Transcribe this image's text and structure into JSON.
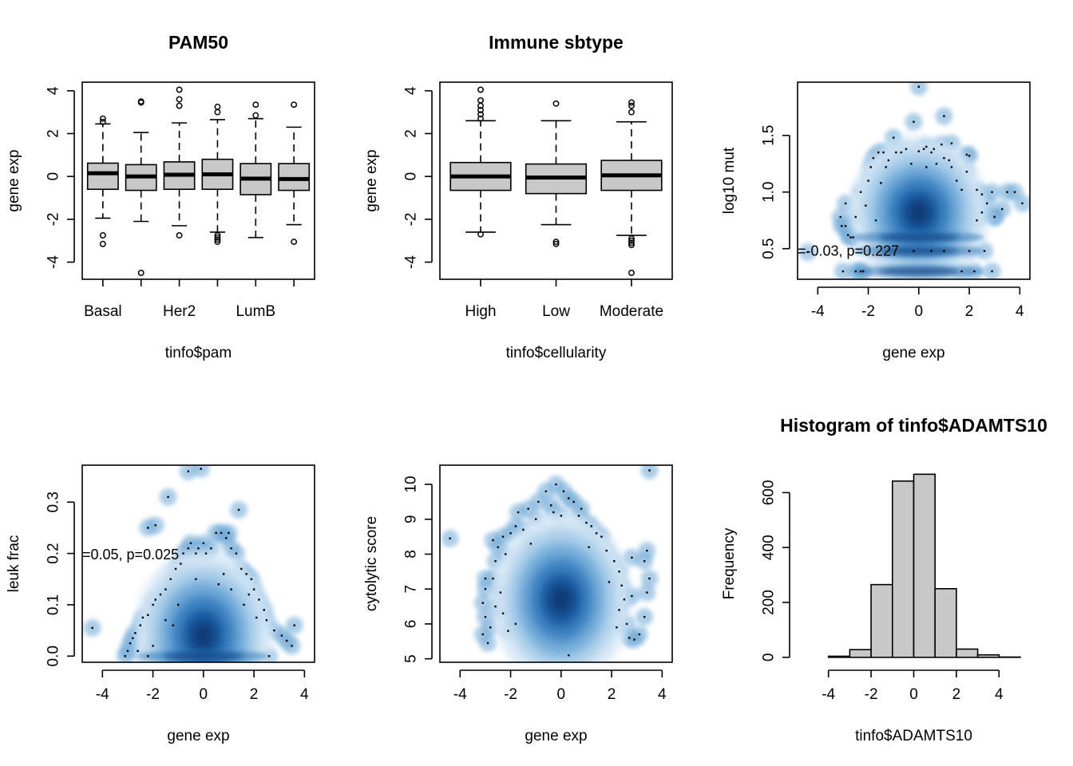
{
  "chart_data": [
    {
      "panel": "top-left",
      "type": "boxplot",
      "title": "PAM50",
      "xlabel": "tinfo$pam",
      "ylabel": "gene exp",
      "ylim": [
        -4.8,
        4.4
      ],
      "yticks": [
        -4,
        -2,
        0,
        2,
        4
      ],
      "yticklabels": [
        "-4",
        "-2",
        "0",
        "2",
        "4"
      ],
      "categories": [
        "Basal",
        "Her2",
        "LumB"
      ],
      "n_boxes": 6,
      "label_box_index": [
        0,
        2,
        4
      ],
      "boxes": [
        {
          "q1": -0.6,
          "median": 0.15,
          "q3": 0.62,
          "wlo": -1.95,
          "whi": 2.45,
          "outliers": [
            2.55,
            2.7,
            -2.75,
            -3.15
          ]
        },
        {
          "q1": -0.65,
          "median": 0.0,
          "q3": 0.55,
          "wlo": -2.1,
          "whi": 2.05,
          "outliers": [
            3.45,
            3.5,
            -4.5
          ]
        },
        {
          "q1": -0.6,
          "median": 0.08,
          "q3": 0.68,
          "wlo": -2.3,
          "whi": 2.5,
          "outliers": [
            3.3,
            3.6,
            4.05,
            -2.75
          ]
        },
        {
          "q1": -0.6,
          "median": 0.1,
          "q3": 0.8,
          "wlo": -2.6,
          "whi": 2.65,
          "outliers": [
            3.0,
            3.25,
            -2.75,
            -2.85,
            -2.95,
            -3.05
          ]
        },
        {
          "q1": -0.85,
          "median": -0.1,
          "q3": 0.6,
          "wlo": -2.85,
          "whi": 2.7,
          "outliers": [
            2.85,
            3.35
          ]
        },
        {
          "q1": -0.65,
          "median": -0.12,
          "q3": 0.6,
          "wlo": -2.25,
          "whi": 2.3,
          "outliers": [
            3.35,
            -3.05
          ]
        }
      ]
    },
    {
      "panel": "top-middle",
      "type": "boxplot",
      "title": "Immune sbtype",
      "xlabel": "tinfo$cellularity",
      "ylabel": "gene exp",
      "ylim": [
        -4.8,
        4.4
      ],
      "yticks": [
        -4,
        -2,
        0,
        2,
        4
      ],
      "yticklabels": [
        "-4",
        "-2",
        "0",
        "2",
        "4"
      ],
      "categories": [
        "High",
        "Low",
        "Moderate"
      ],
      "n_boxes": 3,
      "label_box_index": [
        0,
        1,
        2
      ],
      "boxes": [
        {
          "q1": -0.65,
          "median": 0.0,
          "q3": 0.65,
          "wlo": -2.6,
          "whi": 2.6,
          "outliers": [
            2.7,
            2.9,
            3.1,
            3.3,
            3.55,
            4.05,
            -2.7
          ]
        },
        {
          "q1": -0.8,
          "median": -0.05,
          "q3": 0.58,
          "wlo": -2.25,
          "whi": 2.6,
          "outliers": [
            3.4,
            -3.05,
            -3.15
          ]
        },
        {
          "q1": -0.65,
          "median": 0.05,
          "q3": 0.75,
          "wlo": -2.75,
          "whi": 2.55,
          "outliers": [
            3.0,
            3.3,
            3.45,
            -2.9,
            -3.0,
            -3.1,
            -3.2,
            -4.5
          ]
        }
      ]
    },
    {
      "panel": "top-right",
      "type": "scatter",
      "style": "smoothScatter",
      "xlabel": "gene exp",
      "ylabel": "log10 mut",
      "xlim": [
        -4.8,
        4.4
      ],
      "ylim": [
        0.23,
        1.97
      ],
      "xticks": [
        -4,
        -2,
        0,
        2,
        4
      ],
      "xticklabels": [
        "-4",
        "-2",
        "0",
        "2",
        "4"
      ],
      "yticks": [
        0.5,
        1.0,
        1.5
      ],
      "yticklabels": [
        "0.5",
        "1.0",
        "1.5"
      ],
      "annotation": {
        "text": "=-0.03, p=0.227",
        "x": -4.8,
        "y": 0.48
      },
      "density": {
        "cx": 0.0,
        "cy": 0.82,
        "sx": 1.0,
        "sy": 0.24,
        "spread_x": 1.3,
        "spread_y": 0.32,
        "bands": [
          0.3,
          0.48,
          0.6
        ]
      },
      "points": [
        [
          -4.4,
          0.47
        ],
        [
          -3.1,
          0.78
        ],
        [
          -3.05,
          0.7
        ],
        [
          -2.9,
          0.7
        ],
        [
          -2.8,
          0.62
        ],
        [
          -2.7,
          0.6
        ],
        [
          -2.6,
          0.6
        ],
        [
          -2.5,
          0.78
        ],
        [
          -2.5,
          0.3
        ],
        [
          -2.3,
          0.3
        ],
        [
          -2.2,
          0.3
        ],
        [
          -2.3,
          1.0
        ],
        [
          -2.0,
          1.1
        ],
        [
          -2.1,
          0.88
        ],
        [
          -1.9,
          1.22
        ],
        [
          -1.8,
          1.3
        ],
        [
          -1.7,
          0.75
        ],
        [
          -1.6,
          1.35
        ],
        [
          -1.5,
          1.08
        ],
        [
          -1.4,
          1.35
        ],
        [
          -1.2,
          1.28
        ],
        [
          -1.0,
          1.48
        ],
        [
          -0.9,
          1.35
        ],
        [
          -0.7,
          1.35
        ],
        [
          -0.5,
          1.38
        ],
        [
          -0.3,
          1.25
        ],
        [
          0.0,
          1.36
        ],
        [
          0.2,
          1.38
        ],
        [
          0.3,
          1.4
        ],
        [
          0.5,
          1.35
        ],
        [
          0.6,
          1.38
        ],
        [
          0.9,
          1.42
        ],
        [
          1.0,
          1.3
        ],
        [
          1.2,
          1.28
        ],
        [
          1.5,
          1.1
        ],
        [
          1.7,
          1.02
        ],
        [
          1.9,
          1.18
        ],
        [
          2.0,
          1.32
        ],
        [
          2.3,
          1.02
        ],
        [
          2.5,
          0.98
        ],
        [
          2.7,
          0.9
        ],
        [
          2.5,
          0.82
        ],
        [
          2.3,
          0.75
        ],
        [
          2.9,
          1.0
        ],
        [
          3.0,
          0.78
        ],
        [
          3.3,
          0.85
        ],
        [
          3.5,
          1.0
        ],
        [
          3.8,
          1.0
        ],
        [
          4.1,
          0.9
        ],
        [
          2.6,
          0.48
        ],
        [
          2.9,
          0.3
        ],
        [
          2.2,
          0.3
        ],
        [
          1.7,
          0.3
        ],
        [
          2.0,
          0.48
        ],
        [
          -0.2,
          0.48
        ],
        [
          0.5,
          0.48
        ],
        [
          1.0,
          0.48
        ],
        [
          0.3,
          1.22
        ],
        [
          1.3,
          1.22
        ],
        [
          -1.3,
          1.22
        ],
        [
          0.7,
          1.25
        ],
        [
          1.3,
          1.43
        ],
        [
          0.0,
          1.93
        ],
        [
          1.0,
          1.67
        ],
        [
          -0.2,
          1.62
        ],
        [
          1.9,
          1.33
        ],
        [
          -3.0,
          0.3
        ],
        [
          3.0,
          0.78
        ],
        [
          -2.9,
          0.9
        ]
      ]
    },
    {
      "panel": "bottom-left",
      "type": "scatter",
      "style": "smoothScatter",
      "xlabel": "gene exp",
      "ylabel": "leuk frac",
      "xlim": [
        -4.8,
        4.4
      ],
      "ylim": [
        -0.012,
        0.372
      ],
      "xticks": [
        -4,
        -2,
        0,
        2,
        4
      ],
      "xticklabels": [
        "-4",
        "-2",
        "0",
        "2",
        "4"
      ],
      "yticks": [
        0.0,
        0.1,
        0.2,
        0.3
      ],
      "yticklabels": [
        "0.0",
        "0.1",
        "0.2",
        "0.3"
      ],
      "annotation": {
        "text": "=0.05, p=0.025",
        "x": -4.8,
        "y": 0.198
      },
      "density": {
        "cx": 0.0,
        "cy": 0.04,
        "sx": 1.0,
        "sy": 0.06,
        "spread_x": 1.3,
        "spread_y": 0.08,
        "bands": [
          0.0
        ]
      },
      "points": [
        [
          -4.4,
          0.055
        ],
        [
          -3.1,
          0.0
        ],
        [
          -3.0,
          0.01
        ],
        [
          -2.9,
          0.025
        ],
        [
          -2.8,
          0.035
        ],
        [
          -2.7,
          0.045
        ],
        [
          -2.5,
          0.06
        ],
        [
          -2.4,
          0.075
        ],
        [
          -2.2,
          0.08
        ],
        [
          -2.0,
          0.1
        ],
        [
          -1.9,
          0.11
        ],
        [
          -1.7,
          0.12
        ],
        [
          -1.5,
          0.13
        ],
        [
          -1.3,
          0.15
        ],
        [
          -1.1,
          0.17
        ],
        [
          -0.9,
          0.18
        ],
        [
          -0.8,
          0.2
        ],
        [
          -0.6,
          0.21
        ],
        [
          -0.5,
          0.22
        ],
        [
          -0.3,
          0.2
        ],
        [
          -0.2,
          0.21
        ],
        [
          0.0,
          0.22
        ],
        [
          0.1,
          0.2
        ],
        [
          0.3,
          0.21
        ],
        [
          0.5,
          0.24
        ],
        [
          0.7,
          0.24
        ],
        [
          0.9,
          0.23
        ],
        [
          1.0,
          0.24
        ],
        [
          1.1,
          0.21
        ],
        [
          1.3,
          0.2
        ],
        [
          1.5,
          0.17
        ],
        [
          1.7,
          0.16
        ],
        [
          1.9,
          0.15
        ],
        [
          2.0,
          0.13
        ],
        [
          2.2,
          0.11
        ],
        [
          2.4,
          0.09
        ],
        [
          2.5,
          0.07
        ],
        [
          2.8,
          0.05
        ],
        [
          3.1,
          0.04
        ],
        [
          3.3,
          0.03
        ],
        [
          3.5,
          0.02
        ],
        [
          3.6,
          0.06
        ],
        [
          -2.2,
          0.25
        ],
        [
          -1.9,
          0.255
        ],
        [
          -1.4,
          0.31
        ],
        [
          -0.6,
          0.36
        ],
        [
          -0.1,
          0.365
        ],
        [
          1.4,
          0.285
        ],
        [
          -2.0,
          0.02
        ],
        [
          -1.5,
          0.07
        ],
        [
          -1.0,
          0.1
        ],
        [
          -0.3,
          0.15
        ],
        [
          0.6,
          0.14
        ],
        [
          1.1,
          0.13
        ],
        [
          1.6,
          0.1
        ],
        [
          2.1,
          0.075
        ],
        [
          1.8,
          0.12
        ],
        [
          -1.2,
          0.06
        ],
        [
          -2.6,
          0.01
        ],
        [
          -2.2,
          0.0
        ],
        [
          2.6,
          0.0
        ],
        [
          0.8,
          0.16
        ]
      ]
    },
    {
      "panel": "bottom-middle",
      "type": "scatter",
      "style": "smoothScatter",
      "xlabel": "gene exp",
      "ylabel": "cytolytic score",
      "xlim": [
        -4.8,
        4.4
      ],
      "ylim": [
        4.9,
        10.55
      ],
      "xticks": [
        -4,
        -2,
        0,
        2,
        4
      ],
      "xticklabels": [
        "-4",
        "-2",
        "0",
        "2",
        "4"
      ],
      "yticks": [
        5,
        6,
        7,
        8,
        9,
        10
      ],
      "yticklabels": [
        "5",
        "6",
        "7",
        "8",
        "9",
        "10"
      ],
      "density": {
        "cx": 0.0,
        "cy": 6.7,
        "sx": 1.0,
        "sy": 0.9,
        "spread_x": 1.3,
        "spread_y": 1.2,
        "bands": []
      },
      "points": [
        [
          -4.4,
          8.45
        ],
        [
          -3.1,
          5.7
        ],
        [
          -3.0,
          6.2
        ],
        [
          -3.1,
          6.6
        ],
        [
          -3.0,
          7.0
        ],
        [
          -2.9,
          5.45
        ],
        [
          -2.8,
          5.9
        ],
        [
          -2.7,
          7.3
        ],
        [
          -2.6,
          7.8
        ],
        [
          -2.5,
          8.2
        ],
        [
          -2.7,
          8.4
        ],
        [
          -2.3,
          8.5
        ],
        [
          -2.2,
          8.0
        ],
        [
          -2.0,
          8.6
        ],
        [
          -1.8,
          8.8
        ],
        [
          -1.7,
          9.2
        ],
        [
          -1.5,
          8.7
        ],
        [
          -1.3,
          9.3
        ],
        [
          -1.0,
          9.0
        ],
        [
          -0.9,
          9.5
        ],
        [
          -0.6,
          9.8
        ],
        [
          -0.4,
          9.4
        ],
        [
          -0.2,
          10.0
        ],
        [
          0.1,
          9.8
        ],
        [
          0.3,
          9.6
        ],
        [
          0.5,
          9.5
        ],
        [
          0.7,
          9.1
        ],
        [
          0.8,
          9.3
        ],
        [
          1.0,
          8.9
        ],
        [
          1.2,
          8.8
        ],
        [
          1.4,
          8.6
        ],
        [
          1.6,
          8.5
        ],
        [
          1.8,
          8.1
        ],
        [
          2.1,
          7.8
        ],
        [
          2.3,
          7.5
        ],
        [
          2.4,
          7.1
        ],
        [
          2.5,
          6.7
        ],
        [
          2.6,
          6.0
        ],
        [
          2.7,
          5.6
        ],
        [
          2.9,
          5.55
        ],
        [
          3.1,
          5.7
        ],
        [
          3.3,
          6.2
        ],
        [
          3.4,
          6.9
        ],
        [
          3.5,
          7.3
        ],
        [
          3.3,
          7.8
        ],
        [
          3.4,
          8.1
        ],
        [
          3.5,
          10.4
        ],
        [
          2.3,
          6.4
        ],
        [
          2.2,
          5.9
        ],
        [
          -2.3,
          6.3
        ],
        [
          -2.1,
          5.8
        ],
        [
          -1.8,
          6.0
        ],
        [
          0.3,
          5.1
        ],
        [
          -3.0,
          7.3
        ],
        [
          -2.4,
          6.9
        ],
        [
          2.8,
          6.8
        ],
        [
          1.9,
          7.2
        ],
        [
          -1.2,
          8.3
        ],
        [
          0.0,
          9.1
        ],
        [
          1.1,
          8.2
        ],
        [
          -0.3,
          9.2
        ],
        [
          2.8,
          7.9
        ],
        [
          -2.6,
          6.5
        ]
      ]
    },
    {
      "panel": "bottom-right",
      "type": "histogram",
      "title": "Histogram of tinfo$ADAMTS10",
      "xlabel": "tinfo$ADAMTS10",
      "ylabel": "Frequency",
      "xlim": [
        -5.0,
        5.0
      ],
      "ylim": [
        -18,
        700
      ],
      "xticks": [
        -4,
        -2,
        0,
        2,
        4
      ],
      "xticklabels": [
        "-4",
        "-2",
        "0",
        "2",
        "4"
      ],
      "yticks": [
        0,
        200,
        400,
        600
      ],
      "yticklabels": [
        "0",
        "200",
        "400",
        "600"
      ],
      "bins": [
        {
          "x0": -5,
          "x1": -4,
          "count": 0
        },
        {
          "x0": -4,
          "x1": -3,
          "count": 4
        },
        {
          "x0": -3,
          "x1": -2,
          "count": 28
        },
        {
          "x0": -2,
          "x1": -1,
          "count": 265
        },
        {
          "x0": -1,
          "x1": 0,
          "count": 642
        },
        {
          "x0": 0,
          "x1": 1,
          "count": 667
        },
        {
          "x0": 1,
          "x1": 2,
          "count": 250
        },
        {
          "x0": 2,
          "x1": 3,
          "count": 30
        },
        {
          "x0": 3,
          "x1": 4,
          "count": 9
        },
        {
          "x0": 4,
          "x1": 5,
          "count": 1
        }
      ]
    }
  ]
}
